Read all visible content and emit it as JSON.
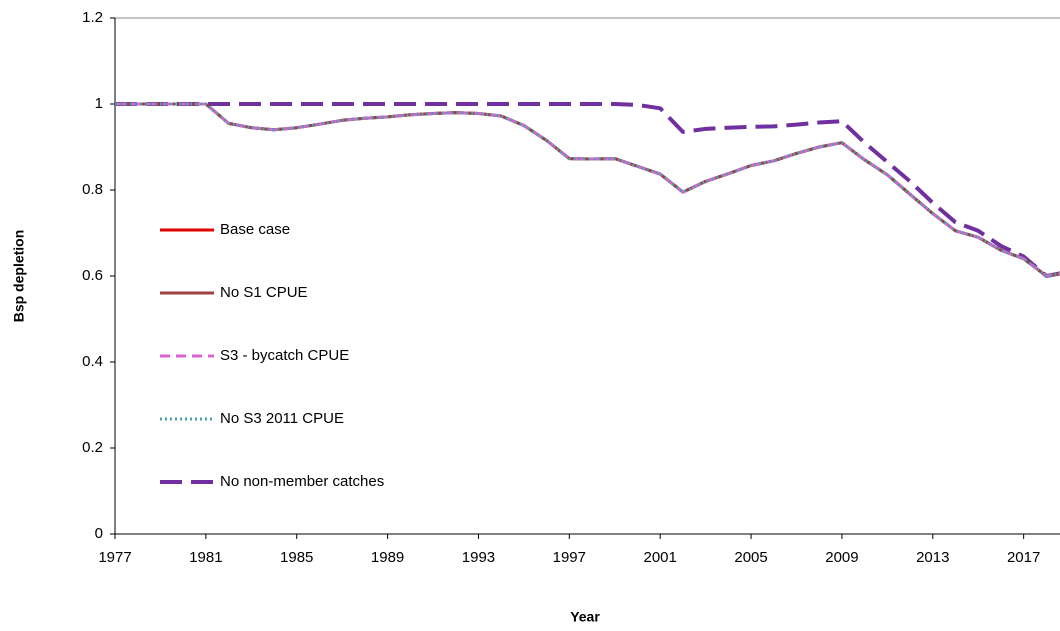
{
  "chart_data": {
    "type": "line",
    "xlabel": "Year",
    "ylabel": "Bsp depletion",
    "x": [
      1977,
      1978,
      1979,
      1980,
      1981,
      1982,
      1983,
      1984,
      1985,
      1986,
      1987,
      1988,
      1989,
      1990,
      1991,
      1992,
      1993,
      1994,
      1995,
      1996,
      1997,
      1998,
      1999,
      2000,
      2001,
      2002,
      2003,
      2004,
      2005,
      2006,
      2007,
      2008,
      2009,
      2010,
      2011,
      2012,
      2013,
      2014,
      2015,
      2016,
      2017,
      2018,
      2019
    ],
    "xlim": [
      1977,
      2018.6
    ],
    "xticks": [
      1977,
      1981,
      1985,
      1989,
      1993,
      1997,
      2001,
      2005,
      2009,
      2013,
      2017
    ],
    "ylim": [
      0,
      1.2
    ],
    "yticks": [
      0,
      0.2,
      0.4,
      0.6,
      0.8,
      1,
      1.2
    ],
    "series": [
      {
        "name": "No non-member catches",
        "color": "#7030a0",
        "line_style": "dashed",
        "values": [
          1.0,
          1.0,
          1.0,
          1.0,
          1.0,
          1.0,
          1.0,
          1.0,
          1.0,
          1.0,
          1.0,
          1.0,
          1.0,
          1.0,
          1.0,
          1.0,
          1.0,
          1.0,
          1.0,
          1.0,
          1.0,
          1.0,
          1.0,
          0.998,
          0.99,
          0.935,
          0.942,
          0.945,
          0.947,
          0.948,
          0.952,
          0.957,
          0.96,
          0.91,
          0.865,
          0.82,
          0.77,
          0.725,
          0.705,
          0.67,
          0.645,
          0.6,
          0.61
        ]
      },
      {
        "name": "Base case",
        "color": "#e00000",
        "line_style": "solid",
        "values": [
          1.0,
          1.0,
          1.0,
          1.0,
          1.0,
          0.955,
          0.945,
          0.94,
          0.945,
          0.953,
          0.962,
          0.967,
          0.97,
          0.975,
          0.978,
          0.98,
          0.978,
          0.972,
          0.95,
          0.915,
          0.873,
          0.872,
          0.873,
          0.855,
          0.837,
          0.795,
          0.82,
          0.838,
          0.857,
          0.868,
          0.885,
          0.9,
          0.91,
          0.87,
          0.835,
          0.79,
          0.745,
          0.705,
          0.69,
          0.66,
          0.64,
          0.6,
          0.61
        ]
      },
      {
        "name": "No S1 CPUE",
        "color": "#a04040",
        "line_style": "solid",
        "values": [
          1.0,
          1.0,
          1.0,
          1.0,
          1.0,
          0.955,
          0.945,
          0.94,
          0.945,
          0.953,
          0.962,
          0.967,
          0.97,
          0.975,
          0.978,
          0.98,
          0.978,
          0.972,
          0.95,
          0.915,
          0.873,
          0.872,
          0.873,
          0.855,
          0.837,
          0.795,
          0.82,
          0.838,
          0.857,
          0.868,
          0.885,
          0.9,
          0.91,
          0.87,
          0.835,
          0.79,
          0.745,
          0.705,
          0.69,
          0.66,
          0.64,
          0.6,
          0.61
        ]
      },
      {
        "name": "S3 - bycatch CPUE",
        "color": "#e060d0",
        "line_style": "dashed",
        "values": [
          1.0,
          1.0,
          1.0,
          1.0,
          1.0,
          0.955,
          0.945,
          0.94,
          0.945,
          0.953,
          0.962,
          0.967,
          0.97,
          0.975,
          0.978,
          0.98,
          0.978,
          0.972,
          0.95,
          0.915,
          0.873,
          0.872,
          0.873,
          0.855,
          0.837,
          0.795,
          0.82,
          0.838,
          0.857,
          0.868,
          0.885,
          0.9,
          0.91,
          0.87,
          0.835,
          0.79,
          0.745,
          0.705,
          0.69,
          0.66,
          0.64,
          0.6,
          0.61
        ]
      },
      {
        "name": "No S3 2011 CPUE",
        "color": "#4aa0b0",
        "line_style": "dotted",
        "values": [
          1.0,
          1.0,
          1.0,
          1.0,
          1.0,
          0.955,
          0.945,
          0.94,
          0.945,
          0.953,
          0.962,
          0.967,
          0.97,
          0.975,
          0.978,
          0.98,
          0.978,
          0.972,
          0.95,
          0.915,
          0.873,
          0.872,
          0.873,
          0.855,
          0.837,
          0.795,
          0.82,
          0.838,
          0.857,
          0.868,
          0.885,
          0.9,
          0.91,
          0.87,
          0.835,
          0.79,
          0.745,
          0.705,
          0.69,
          0.66,
          0.64,
          0.6,
          0.61
        ]
      }
    ],
    "legend_order": [
      1,
      2,
      3,
      4,
      0
    ]
  }
}
